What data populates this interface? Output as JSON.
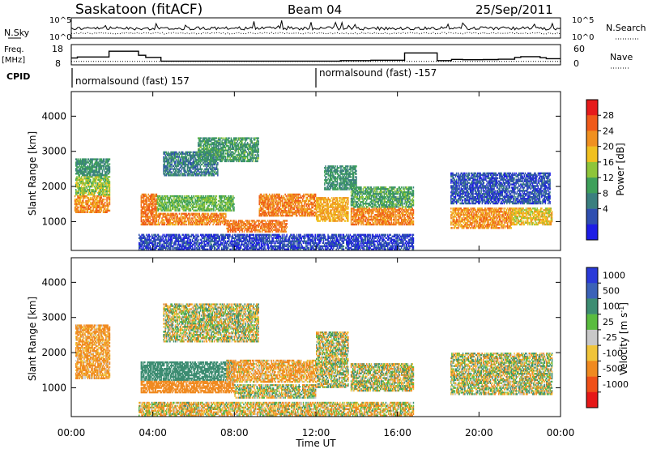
{
  "header": {
    "station": "Saskatoon (fitACF)",
    "beam": "Beam 04",
    "date": "25/Sep/2011"
  },
  "noise_panel": {
    "left_label": "N.Sky",
    "right_label": "N.Search",
    "left_ticks": [
      "10^5",
      "10^0"
    ],
    "right_ticks": [
      "10^5",
      "10^0"
    ]
  },
  "freq_panel": {
    "left_label_line1": "Freq.",
    "left_label_line2": "[MHz]",
    "right_label": "Nave",
    "left_ticks": [
      "18",
      "8"
    ],
    "right_ticks": [
      "60",
      "0"
    ],
    "freq_steps": [
      {
        "t": 0.0,
        "f": 12.0
      },
      {
        "t": 0.3,
        "f": 12.6
      },
      {
        "t": 1.85,
        "f": 16.0
      },
      {
        "t": 3.3,
        "f": 13.6
      },
      {
        "t": 3.65,
        "f": 12.4
      },
      {
        "t": 4.4,
        "f": 10.2
      },
      {
        "t": 13.2,
        "f": 10.5
      },
      {
        "t": 14.7,
        "f": 10.7
      },
      {
        "t": 16.35,
        "f": 15.0
      },
      {
        "t": 17.95,
        "f": 10.5
      },
      {
        "t": 18.65,
        "f": 11.2
      },
      {
        "t": 19.2,
        "f": 11.0
      },
      {
        "t": 20.2,
        "f": 11.1
      },
      {
        "t": 20.95,
        "f": 11.3
      },
      {
        "t": 21.75,
        "f": 12.4
      },
      {
        "t": 22.05,
        "f": 12.8
      },
      {
        "t": 23.0,
        "f": 12.2
      },
      {
        "t": 23.3,
        "f": 11.6
      },
      {
        "t": 24.0,
        "f": 11.6
      }
    ],
    "nave_level": 12
  },
  "cpid": {
    "label": "CPID",
    "mode1": "normalsound (fast) 157",
    "mode2": "normalsound (fast) -157",
    "switch_time": 12.0
  },
  "x_axis": {
    "label": "Time UT",
    "ticks": [
      "00:00",
      "04:00",
      "08:00",
      "12:00",
      "16:00",
      "20:00",
      "00:00"
    ]
  },
  "colors": {
    "power_scale": [
      "#1d1de6",
      "#2f4fb0",
      "#3a7f7f",
      "#3ea05a",
      "#8ec53a",
      "#f0c020",
      "#f09020",
      "#ef5a1a",
      "#e61b1b"
    ],
    "velocity_scale": [
      "#2a3ad8",
      "#3b62b8",
      "#3d8d72",
      "#5abc3f",
      "#c8c8c8",
      "#f0c43a",
      "#f08a20",
      "#ef5018",
      "#e61818"
    ]
  },
  "power_colorbar": {
    "label": "Power [dB]",
    "ticks": [
      "28",
      "24",
      "20",
      "16",
      "12",
      "8",
      "4"
    ]
  },
  "velocity_colorbar": {
    "label": "Velocity [m s^-1]",
    "ticks": [
      "1000",
      "500",
      "100",
      "25",
      "-25",
      "-100",
      "-500",
      "-1000"
    ]
  },
  "chart_data": [
    {
      "type": "heatmap",
      "title": "Saskatoon (fitACF) Beam 04 25/Sep/2011",
      "panel": "Power",
      "xlabel": "Time UT",
      "ylabel": "Slant Range [km]",
      "xlim": [
        0,
        24
      ],
      "ylim": [
        180,
        4700
      ],
      "yticks": [
        1000,
        2000,
        3000,
        4000
      ],
      "colorbar": {
        "label": "Power [dB]",
        "range": [
          0,
          32
        ],
        "ticks": [
          4,
          8,
          12,
          16,
          20,
          24,
          28
        ]
      },
      "blobs": [
        {
          "t0": 0.15,
          "t1": 1.9,
          "r0": 1250,
          "r1": 1750,
          "p": 26
        },
        {
          "t0": 0.2,
          "t1": 1.9,
          "r0": 1750,
          "r1": 2300,
          "p": 18
        },
        {
          "t0": 0.2,
          "t1": 1.9,
          "r0": 2300,
          "r1": 2800,
          "p": 12
        },
        {
          "t0": 3.4,
          "t1": 4.2,
          "r0": 900,
          "r1": 1800,
          "p": 28
        },
        {
          "t0": 4.2,
          "t1": 7.6,
          "r0": 900,
          "r1": 1250,
          "p": 27
        },
        {
          "t0": 4.2,
          "t1": 8.0,
          "r0": 1300,
          "r1": 1750,
          "p": 16
        },
        {
          "t0": 7.6,
          "t1": 10.6,
          "r0": 700,
          "r1": 1050,
          "p": 28
        },
        {
          "t0": 9.2,
          "t1": 12.0,
          "r0": 1150,
          "r1": 1800,
          "p": 27
        },
        {
          "t0": 12.0,
          "t1": 13.6,
          "r0": 1000,
          "r1": 1700,
          "p": 24
        },
        {
          "t0": 13.7,
          "t1": 16.8,
          "r0": 900,
          "r1": 1400,
          "p": 27
        },
        {
          "t0": 13.7,
          "t1": 16.8,
          "r0": 1400,
          "r1": 2000,
          "p": 14
        },
        {
          "t0": 4.5,
          "t1": 7.2,
          "r0": 2300,
          "r1": 3000,
          "p": 10
        },
        {
          "t0": 6.2,
          "t1": 9.2,
          "r0": 2700,
          "r1": 3400,
          "p": 13
        },
        {
          "t0": 12.4,
          "t1": 14.0,
          "r0": 1900,
          "r1": 2600,
          "p": 12
        },
        {
          "t0": 18.6,
          "t1": 21.6,
          "r0": 800,
          "r1": 1400,
          "p": 26
        },
        {
          "t0": 21.6,
          "t1": 23.6,
          "r0": 900,
          "r1": 1400,
          "p": 22
        },
        {
          "t0": 18.6,
          "t1": 23.5,
          "r0": 1500,
          "r1": 2400,
          "p": 6
        },
        {
          "t0": 3.3,
          "t1": 16.8,
          "r0": 190,
          "r1": 650,
          "p": 5
        }
      ]
    },
    {
      "type": "heatmap",
      "panel": "Velocity",
      "xlabel": "Time UT",
      "ylabel": "Slant Range [km]",
      "xlim": [
        0,
        24
      ],
      "ylim": [
        180,
        4700
      ],
      "yticks": [
        1000,
        2000,
        3000,
        4000
      ],
      "colorbar": {
        "label": "Velocity [m s^-1]",
        "levels": [
          1000,
          500,
          100,
          25,
          -25,
          -100,
          -500,
          -1000
        ]
      },
      "blobs": [
        {
          "t0": 0.2,
          "t1": 1.9,
          "r0": 1250,
          "r1": 2800,
          "v": -200
        },
        {
          "t0": 3.4,
          "t1": 8.0,
          "r0": 1200,
          "r1": 1750,
          "v": 300
        },
        {
          "t0": 3.4,
          "t1": 8.0,
          "r0": 850,
          "r1": 1200,
          "v": -300
        },
        {
          "t0": 7.6,
          "t1": 12.0,
          "r0": 1150,
          "r1": 1800,
          "v": -150
        },
        {
          "t0": 8.0,
          "t1": 12.0,
          "r0": 700,
          "r1": 1100,
          "v": 0
        },
        {
          "t0": 12.0,
          "t1": 13.6,
          "r0": 1000,
          "r1": 2600,
          "v": 0
        },
        {
          "t0": 13.7,
          "t1": 16.8,
          "r0": 900,
          "r1": 1700,
          "v": 0
        },
        {
          "t0": 4.5,
          "t1": 9.2,
          "r0": 2300,
          "r1": 3400,
          "v": 0
        },
        {
          "t0": 18.6,
          "t1": 23.6,
          "r0": 800,
          "r1": 2000,
          "v": 0
        },
        {
          "t0": 3.3,
          "t1": 16.8,
          "r0": 190,
          "r1": 600,
          "v": -60
        }
      ]
    }
  ]
}
